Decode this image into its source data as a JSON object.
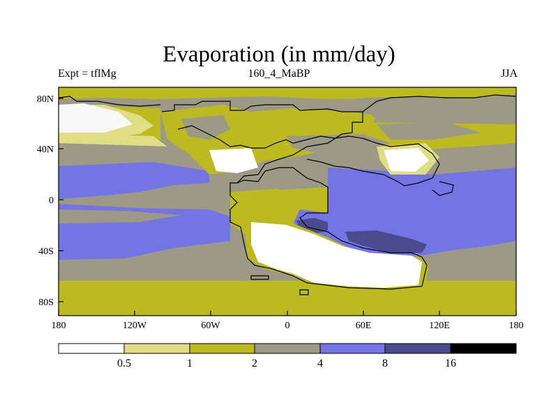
{
  "title": "Evaporation (in mm/day)",
  "subtitle_left": "Expt = tflMg",
  "subtitle_center": "160_4_MaBP",
  "subtitle_right": "JJA",
  "x_ticks": [
    "180",
    "120W",
    "60W",
    "0",
    "60E",
    "120E",
    "180"
  ],
  "y_ticks": [
    "80N",
    "40N",
    "0",
    "40S",
    "80S"
  ],
  "colorbar": {
    "labels": [
      "0.5",
      "1",
      "2",
      "4",
      "8",
      "16"
    ],
    "colors": [
      "#ffffff",
      "#e0de85",
      "#bcba20",
      "#9c9a87",
      "#7474e4",
      "#4a4a8e",
      "#000000"
    ]
  }
}
